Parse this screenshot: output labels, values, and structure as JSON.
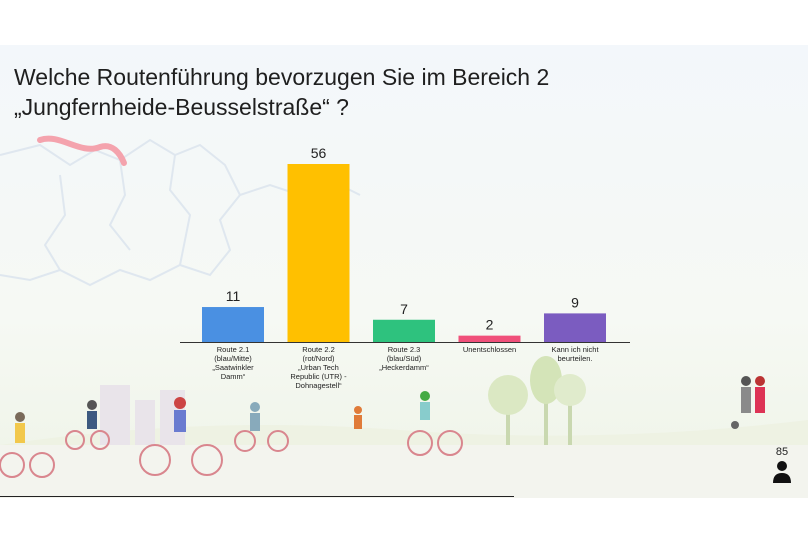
{
  "title": {
    "line1": "Welche Routenführung bevorzugen Sie im Bereich 2",
    "line2": "„Jungfernheide-Beusselstraße“ ?"
  },
  "page_number": "85",
  "icons": {
    "user": "person-icon"
  },
  "chart_data": {
    "type": "bar",
    "title": "Welche Routenführung bevorzugen Sie im Bereich 2 „Jungfernheide-Beusselstraße“ ?",
    "xlabel": "",
    "ylabel": "",
    "grid": false,
    "legend": "none",
    "categories": [
      [
        "Route 2.1",
        "(blau/Mitte)",
        "„Saatwinkler",
        "Damm“"
      ],
      [
        "Route 2.2",
        "(rot/Nord)",
        "„Urban Tech",
        "Republic (UTR) -",
        "Dohnagestell“"
      ],
      [
        "Route 2.3",
        "(blau/Süd)",
        "„Heckerdamm“"
      ],
      [
        "Unentschlossen"
      ],
      [
        "Kann ich nicht",
        "beurteilen."
      ]
    ],
    "values": [
      11,
      56,
      7,
      2,
      9
    ],
    "colors": [
      "#4a90e2",
      "#ffc000",
      "#2ec27e",
      "#f0507a",
      "#7b5cc0"
    ],
    "ylim": [
      0,
      56
    ]
  }
}
